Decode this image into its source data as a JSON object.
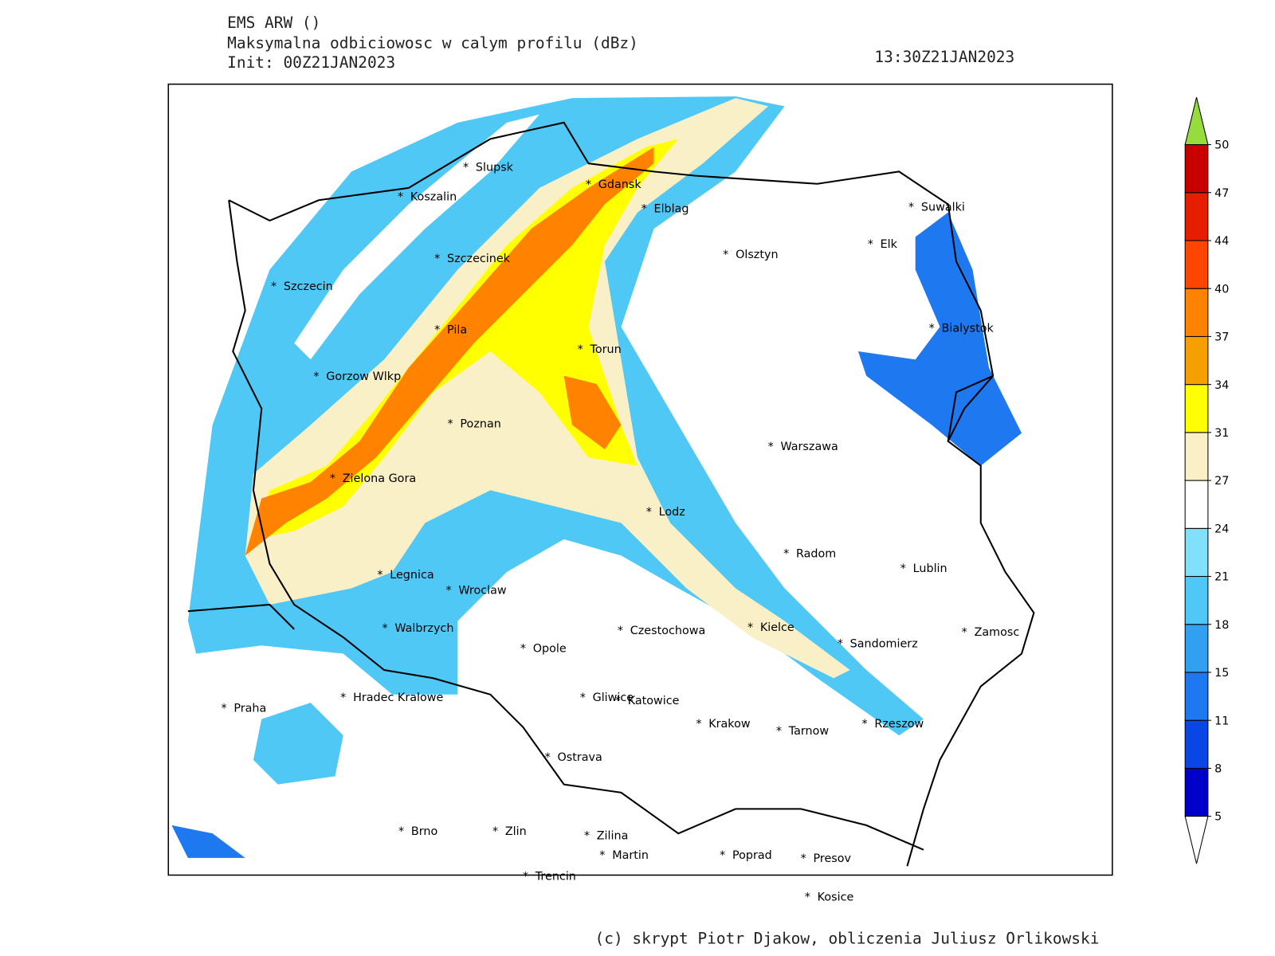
{
  "header": {
    "line1": "EMS ARW ()",
    "line2": "Maksymalna odbiciowosc w calym profilu (dBz)",
    "line3": "Init: 00Z21JAN2023",
    "valid_time": "13:30Z21JAN2023"
  },
  "cities": [
    "Slupsk",
    "Koszalin",
    "Gdansk",
    "Elblag",
    "Suwalki",
    "Elk",
    "Olsztyn",
    "Szczecinek",
    "Szczecin",
    "Pila",
    "Bialystok",
    "Torun",
    "Gorzow Wlkp",
    "Poznan",
    "Warszawa",
    "Zielona Gora",
    "Lodz",
    "Radom",
    "Lublin",
    "Legnica",
    "Wroclaw",
    "Walbrzych",
    "Czestochowa",
    "Kielce",
    "Zamosc",
    "Sandomierz",
    "Opole",
    "Praha",
    "Hradec Kralowe",
    "Gliwice",
    "Katowice",
    "Krakow",
    "Tarnow",
    "Rzeszow",
    "Ostrava",
    "Brno",
    "Zlin",
    "Zilina",
    "Martin",
    "Poprad",
    "Presov",
    "Trencin",
    "Kosice"
  ],
  "colorbar": {
    "levels": [
      5,
      8,
      11,
      15,
      18,
      21,
      24,
      27,
      31,
      34,
      37,
      40,
      44,
      47,
      50
    ],
    "colors": [
      "#0000c8",
      "#0a46e6",
      "#1e78f0",
      "#32a0f0",
      "#50c8f5",
      "#82e1fa",
      "#ffffff",
      "#faf0c8",
      "#ffff00",
      "#f5a000",
      "#ff8200",
      "#ff4600",
      "#e61e00",
      "#c80000"
    ],
    "below_color": "#ffffff",
    "above_color": "#96dc3c"
  },
  "footer": "(c) skrypt Piotr Djakow, obliczenia Juliusz Orlikowski"
}
